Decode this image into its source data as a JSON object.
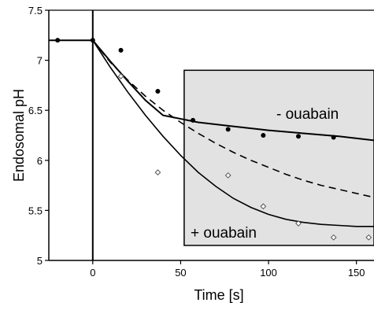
{
  "chart_data": {
    "type": "scatter",
    "title": "",
    "xlabel": "Time [s]",
    "ylabel": "Endosomal pH",
    "xlim": [
      -25,
      160
    ],
    "ylim": [
      5,
      7.5
    ],
    "x_ticks": [
      0,
      50,
      100,
      150
    ],
    "x_tick_labels": [
      "0",
      "50",
      "100",
      "150"
    ],
    "y_ticks": [
      5,
      5.5,
      6,
      6.5,
      7,
      7.5
    ],
    "y_tick_labels": [
      "5",
      "5.5",
      "6",
      "6.5",
      "7",
      "7.5"
    ],
    "grid": false,
    "legend": "none",
    "shaded_region": {
      "x": [
        52,
        160
      ],
      "y": [
        5.15,
        6.9
      ],
      "color": "#e2e2e2"
    },
    "annotations": [
      "- ouabain",
      "+ ouabain"
    ],
    "series": [
      {
        "marker": "filled-circle",
        "x": [
          -20,
          0,
          16,
          37,
          57,
          77,
          97,
          117,
          137
        ],
        "y": [
          7.2,
          7.2,
          7.1,
          6.69,
          6.4,
          6.31,
          6.25,
          6.24,
          6.23
        ]
      },
      {
        "marker": "open-diamond",
        "x": [
          16,
          37,
          77,
          97,
          117,
          137,
          157
        ],
        "y": [
          6.84,
          5.88,
          5.85,
          5.54,
          5.37,
          5.23,
          5.23
        ]
      },
      {
        "line": "solid",
        "x": [
          -25,
          0,
          10,
          20,
          30,
          40,
          60,
          80,
          100,
          120,
          140,
          160
        ],
        "y": [
          7.2,
          7.2,
          6.99,
          6.79,
          6.6,
          6.45,
          6.38,
          6.34,
          6.3,
          6.27,
          6.24,
          6.2
        ]
      },
      {
        "line": "dashed",
        "x": [
          0,
          10,
          20,
          30,
          40,
          50,
          60,
          70,
          80,
          90,
          100,
          110,
          120,
          130,
          140,
          150,
          160
        ],
        "y": [
          7.2,
          6.98,
          6.8,
          6.64,
          6.5,
          6.38,
          6.27,
          6.17,
          6.08,
          6.0,
          5.93,
          5.86,
          5.8,
          5.75,
          5.71,
          5.67,
          5.63
        ]
      },
      {
        "line": "solid",
        "x": [
          0,
          10,
          20,
          30,
          40,
          50,
          60,
          70,
          80,
          90,
          100,
          110,
          120,
          130,
          140,
          150,
          160
        ],
        "y": [
          7.2,
          6.93,
          6.68,
          6.45,
          6.24,
          6.05,
          5.88,
          5.74,
          5.62,
          5.53,
          5.46,
          5.41,
          5.38,
          5.36,
          5.35,
          5.34,
          5.34
        ]
      }
    ],
    "colors": {
      "axis": "#000000",
      "shade": "#e2e2e2",
      "marker": "#000000"
    }
  }
}
